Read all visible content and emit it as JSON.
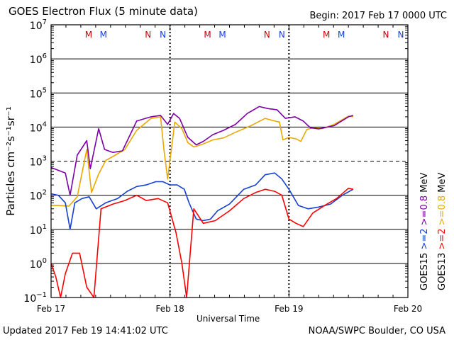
{
  "header": {
    "title": "GOES Electron Flux (5 minute data)",
    "begin": "Begin: 2017 Feb 17 0000 UTC"
  },
  "footer": {
    "updated": "Updated 2017 Feb 19 14:41:02 UTC",
    "credit": "NOAA/SWPC Boulder, CO USA"
  },
  "chart_data": {
    "type": "line",
    "title": "GOES Electron Flux (5 minute data)",
    "xlabel": "Universal Time",
    "ylabel": "Particles cm⁻²s⁻¹sr⁻¹",
    "yscale": "log",
    "ylim": [
      0.1,
      10000000
    ],
    "xlim_days": [
      0,
      3
    ],
    "x_ticks": [
      "Feb 17",
      "Feb 18",
      "Feb 19",
      "Feb 20"
    ],
    "y_tick_exponents": [
      -1,
      0,
      1,
      2,
      3,
      4,
      5,
      6,
      7
    ],
    "grid": true,
    "threshold_line": 1000,
    "legend_placement": "right",
    "colors": {
      "purple": "#7b00a8",
      "gold": "#e8a800",
      "blue": "#1540d0",
      "red": "#ff0000"
    },
    "series": [
      {
        "name": ">=0.8 MeV",
        "satellite": "GOES13",
        "color": "#e8a800",
        "points": [
          [
            0,
            50
          ],
          [
            0.06,
            50
          ],
          [
            0.15,
            48
          ],
          [
            0.22,
            90
          ],
          [
            0.3,
            2200
          ],
          [
            0.34,
            120
          ],
          [
            0.4,
            420
          ],
          [
            0.46,
            1050
          ],
          [
            0.54,
            1500
          ],
          [
            0.62,
            2200
          ],
          [
            0.72,
            8000
          ],
          [
            0.84,
            18000
          ],
          [
            0.92,
            20000
          ],
          [
            0.95,
            2000
          ],
          [
            0.98,
            300
          ],
          [
            1.04,
            14000
          ],
          [
            1.1,
            9000
          ],
          [
            1.15,
            3500
          ],
          [
            1.2,
            2600
          ],
          [
            1.28,
            3200
          ],
          [
            1.36,
            4200
          ],
          [
            1.45,
            4800
          ],
          [
            1.55,
            7000
          ],
          [
            1.68,
            11000
          ],
          [
            1.8,
            18000
          ],
          [
            1.88,
            15000
          ],
          [
            1.92,
            14000
          ],
          [
            1.95,
            4200
          ],
          [
            2.0,
            5000
          ],
          [
            2.06,
            4500
          ],
          [
            2.1,
            3800
          ],
          [
            2.15,
            8500
          ],
          [
            2.2,
            9500
          ],
          [
            2.28,
            9000
          ],
          [
            2.38,
            12000
          ],
          [
            2.5,
            21000
          ],
          [
            2.54,
            20000
          ]
        ]
      },
      {
        "name": ">=0.8 MeV",
        "satellite": "GOES15",
        "color": "#7b00a8",
        "points": [
          [
            0,
            650
          ],
          [
            0.12,
            450
          ],
          [
            0.16,
            100
          ],
          [
            0.22,
            1500
          ],
          [
            0.3,
            4000
          ],
          [
            0.33,
            600
          ],
          [
            0.4,
            9000
          ],
          [
            0.45,
            2200
          ],
          [
            0.52,
            1800
          ],
          [
            0.6,
            2000
          ],
          [
            0.72,
            15000
          ],
          [
            0.84,
            20000
          ],
          [
            0.92,
            22000
          ],
          [
            0.98,
            12000
          ],
          [
            1.03,
            25000
          ],
          [
            1.08,
            18000
          ],
          [
            1.15,
            5000
          ],
          [
            1.22,
            3000
          ],
          [
            1.28,
            3800
          ],
          [
            1.36,
            6000
          ],
          [
            1.45,
            8000
          ],
          [
            1.55,
            12000
          ],
          [
            1.65,
            25000
          ],
          [
            1.75,
            40000
          ],
          [
            1.82,
            35000
          ],
          [
            1.9,
            32000
          ],
          [
            1.97,
            18000
          ],
          [
            2.05,
            20000
          ],
          [
            2.12,
            15000
          ],
          [
            2.18,
            9500
          ],
          [
            2.25,
            8800
          ],
          [
            2.38,
            11000
          ],
          [
            2.5,
            20000
          ],
          [
            2.54,
            22000
          ]
        ]
      },
      {
        "name": ">=2 MeV",
        "satellite": "GOES15",
        "color": "#1540d0",
        "points": [
          [
            0,
            110
          ],
          [
            0.06,
            100
          ],
          [
            0.12,
            60
          ],
          [
            0.16,
            10
          ],
          [
            0.2,
            60
          ],
          [
            0.26,
            80
          ],
          [
            0.32,
            90
          ],
          [
            0.38,
            40
          ],
          [
            0.46,
            60
          ],
          [
            0.56,
            80
          ],
          [
            0.64,
            130
          ],
          [
            0.72,
            180
          ],
          [
            0.8,
            200
          ],
          [
            0.88,
            250
          ],
          [
            0.94,
            250
          ],
          [
            1.0,
            200
          ],
          [
            1.06,
            200
          ],
          [
            1.12,
            150
          ],
          [
            1.16,
            60
          ],
          [
            1.22,
            20
          ],
          [
            1.28,
            18
          ],
          [
            1.34,
            20
          ],
          [
            1.4,
            35
          ],
          [
            1.5,
            55
          ],
          [
            1.62,
            150
          ],
          [
            1.72,
            200
          ],
          [
            1.8,
            400
          ],
          [
            1.88,
            450
          ],
          [
            1.94,
            300
          ],
          [
            2.0,
            150
          ],
          [
            2.08,
            50
          ],
          [
            2.16,
            40
          ],
          [
            2.25,
            45
          ],
          [
            2.35,
            55
          ],
          [
            2.45,
            100
          ],
          [
            2.54,
            150
          ]
        ]
      },
      {
        "name": ">=2 MeV",
        "satellite": "GOES13",
        "color": "#ff0000",
        "points": [
          [
            0,
            1
          ],
          [
            0.04,
            0.4
          ],
          [
            0.08,
            0.1
          ],
          [
            0.12,
            0.5
          ],
          [
            0.18,
            2
          ],
          [
            0.24,
            2
          ],
          [
            0.3,
            0.2
          ],
          [
            0.36,
            0.1
          ],
          [
            0.42,
            40
          ],
          [
            0.52,
            55
          ],
          [
            0.62,
            70
          ],
          [
            0.72,
            100
          ],
          [
            0.8,
            70
          ],
          [
            0.9,
            80
          ],
          [
            0.98,
            60
          ],
          [
            1.05,
            8
          ],
          [
            1.1,
            1
          ],
          [
            1.14,
            0.1
          ],
          [
            1.2,
            40
          ],
          [
            1.28,
            15
          ],
          [
            1.38,
            18
          ],
          [
            1.5,
            35
          ],
          [
            1.62,
            80
          ],
          [
            1.72,
            120
          ],
          [
            1.8,
            150
          ],
          [
            1.88,
            130
          ],
          [
            1.94,
            100
          ],
          [
            2.0,
            20
          ],
          [
            2.06,
            15
          ],
          [
            2.12,
            12
          ],
          [
            2.2,
            30
          ],
          [
            2.3,
            50
          ],
          [
            2.4,
            80
          ],
          [
            2.5,
            160
          ],
          [
            2.54,
            150
          ]
        ]
      }
    ],
    "markers": {
      "row_labels": [
        {
          "label": "M",
          "x": 0.375,
          "color": "#cc0000"
        },
        {
          "label": "M",
          "x": 0.5,
          "color": "#1540d0"
        },
        {
          "label": "N",
          "x": 0.875,
          "color": "#cc0000"
        },
        {
          "label": "N",
          "x": 1.0,
          "color": "#1540d0"
        },
        {
          "label": "M",
          "x": 1.375,
          "color": "#cc0000"
        },
        {
          "label": "M",
          "x": 1.5,
          "color": "#1540d0"
        },
        {
          "label": "N",
          "x": 1.875,
          "color": "#cc0000"
        },
        {
          "label": "N",
          "x": 2.0,
          "color": "#1540d0"
        },
        {
          "label": "M",
          "x": 2.375,
          "color": "#cc0000"
        },
        {
          "label": "M",
          "x": 2.5,
          "color": "#1540d0"
        },
        {
          "label": "N",
          "x": 2.875,
          "color": "#cc0000"
        },
        {
          "label": "N",
          "x": 3.0,
          "color": "#1540d0"
        }
      ]
    },
    "legend": {
      "left_column": [
        {
          "text": "GOES15",
          "color": "#000000"
        },
        {
          "text": ">=2",
          "color": "#1540d0"
        },
        {
          "text": ">=0.8",
          "color": "#7b00a8"
        },
        {
          "text": "MeV",
          "color": "#000000"
        }
      ],
      "right_column": [
        {
          "text": "GOES13",
          "color": "#000000"
        },
        {
          "text": ">=2",
          "color": "#ff0000"
        },
        {
          "text": ">=0.8",
          "color": "#e8a800"
        },
        {
          "text": "MeV",
          "color": "#000000"
        }
      ]
    }
  }
}
